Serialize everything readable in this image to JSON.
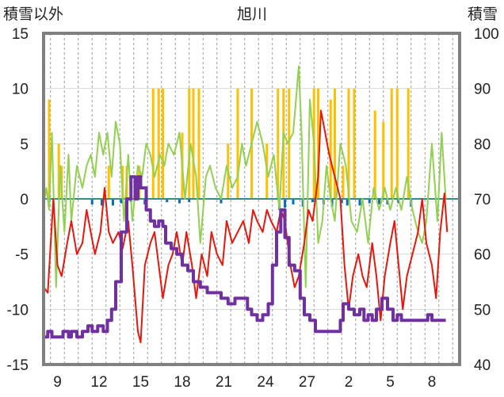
{
  "chart_data": {
    "type": "line",
    "title": "旭川",
    "y_left_label": "積雪以外",
    "y_right_label": "積雪",
    "y_left_range": [
      -15,
      15
    ],
    "y_left_ticks": [
      "15",
      "10",
      "5",
      "0",
      "-5",
      "-10",
      "-15"
    ],
    "y_right_range": [
      40,
      100
    ],
    "y_right_ticks": [
      "100",
      "90",
      "80",
      "70",
      "60",
      "50",
      "40"
    ],
    "x_range": [
      0,
      30
    ],
    "x_tick_positions": [
      1,
      4,
      7,
      10,
      13,
      16,
      19,
      22,
      25,
      28
    ],
    "x_tick_labels": [
      "9",
      "12",
      "15",
      "18",
      "21",
      "24",
      "27",
      "2",
      "5",
      "8"
    ],
    "grid": true,
    "colors": {
      "red": "#e8160c",
      "green": "#92d050",
      "orange": "#ffc000",
      "blue": "#0070c0",
      "purple": "#7030a0",
      "frame": "#808080"
    },
    "series": [
      {
        "color_key": "orange",
        "kind": "bars",
        "axis": "left",
        "points": [
          [
            0.4,
            9
          ],
          [
            1.1,
            5
          ],
          [
            1.3,
            3
          ],
          [
            4.7,
            3
          ],
          [
            5.7,
            3
          ],
          [
            6.0,
            3
          ],
          [
            6.9,
            3
          ],
          [
            7.9,
            10
          ],
          [
            8.3,
            10
          ],
          [
            8.6,
            10
          ],
          [
            10.0,
            6
          ],
          [
            10.5,
            10
          ],
          [
            10.8,
            10
          ],
          [
            11.2,
            10
          ],
          [
            13.3,
            5
          ],
          [
            14.0,
            10
          ],
          [
            15.0,
            10
          ],
          [
            16.1,
            5
          ],
          [
            16.9,
            10
          ],
          [
            17.3,
            10
          ],
          [
            17.7,
            10
          ],
          [
            19.5,
            10
          ],
          [
            19.8,
            10
          ],
          [
            20.7,
            9
          ],
          [
            21.0,
            10
          ],
          [
            21.6,
            3
          ],
          [
            22.0,
            10
          ],
          [
            22.4,
            10
          ],
          [
            23.9,
            8
          ],
          [
            24.5,
            7
          ],
          [
            25.1,
            10
          ],
          [
            25.5,
            10
          ],
          [
            26.3,
            10
          ]
        ]
      },
      {
        "color_key": "blue",
        "kind": "bars",
        "axis": "left",
        "points": [
          [
            3.5,
            -0.5
          ],
          [
            4.2,
            -0.6
          ],
          [
            5.0,
            -0.6
          ],
          [
            5.6,
            -0.4
          ],
          [
            6.3,
            -0.3
          ],
          [
            7.3,
            -0.5
          ],
          [
            8.9,
            -0.3
          ],
          [
            9.8,
            -0.4
          ],
          [
            10.5,
            -0.3
          ],
          [
            12.8,
            -0.4
          ],
          [
            17.0,
            -1.0
          ],
          [
            17.4,
            -0.8
          ],
          [
            18.0,
            -0.5
          ],
          [
            18.7,
            -0.7
          ],
          [
            19.4,
            -0.3
          ],
          [
            20.2,
            -0.5
          ],
          [
            20.8,
            -0.7
          ],
          [
            21.5,
            -0.4
          ],
          [
            21.9,
            -0.6
          ],
          [
            22.8,
            -0.6
          ],
          [
            23.5,
            -0.4
          ],
          [
            24.2,
            -0.5
          ],
          [
            24.8,
            -0.5
          ],
          [
            25.6,
            -0.4
          ],
          [
            26.5,
            -0.7
          ]
        ]
      },
      {
        "color_key": "green",
        "kind": "line",
        "axis": "left",
        "points": [
          [
            0,
            -0.5
          ],
          [
            0.2,
            1
          ],
          [
            0.4,
            -1
          ],
          [
            0.6,
            6
          ],
          [
            0.9,
            -8
          ],
          [
            1.2,
            3
          ],
          [
            1.5,
            -3
          ],
          [
            1.8,
            4
          ],
          [
            2.0,
            -2
          ],
          [
            2.4,
            3
          ],
          [
            2.8,
            1
          ],
          [
            3.1,
            3
          ],
          [
            3.4,
            4
          ],
          [
            3.7,
            2
          ],
          [
            4.0,
            6
          ],
          [
            4.3,
            4
          ],
          [
            4.6,
            6
          ],
          [
            4.9,
            2
          ],
          [
            5.2,
            7
          ],
          [
            5.5,
            5
          ],
          [
            5.8,
            -2
          ],
          [
            6.1,
            4
          ],
          [
            6.4,
            -2
          ],
          [
            6.8,
            3
          ],
          [
            7.1,
            2
          ],
          [
            7.4,
            5
          ],
          [
            7.7,
            4
          ],
          [
            8.0,
            2
          ],
          [
            8.4,
            4
          ],
          [
            8.7,
            3
          ],
          [
            9.0,
            5
          ],
          [
            9.4,
            4
          ],
          [
            9.8,
            6
          ],
          [
            10.2,
            0
          ],
          [
            10.6,
            5
          ],
          [
            11.0,
            2
          ],
          [
            11.3,
            -4
          ],
          [
            11.7,
            2
          ],
          [
            12.0,
            3
          ],
          [
            12.4,
            1
          ],
          [
            12.8,
            0
          ],
          [
            13.2,
            3
          ],
          [
            13.6,
            1
          ],
          [
            14.0,
            2
          ],
          [
            14.3,
            5
          ],
          [
            14.6,
            3
          ],
          [
            15.0,
            5
          ],
          [
            15.4,
            7
          ],
          [
            15.8,
            5
          ],
          [
            16.2,
            2
          ],
          [
            16.6,
            4
          ],
          [
            17.0,
            -1
          ],
          [
            17.3,
            6
          ],
          [
            17.6,
            5
          ],
          [
            18.0,
            6
          ],
          [
            18.4,
            12
          ],
          [
            18.6,
            6
          ],
          [
            18.9,
            -8
          ],
          [
            19.2,
            9
          ],
          [
            19.5,
            5
          ],
          [
            19.8,
            -4
          ],
          [
            20.1,
            -2
          ],
          [
            20.4,
            3
          ],
          [
            20.7,
            0
          ],
          [
            21.0,
            -2
          ],
          [
            21.4,
            5
          ],
          [
            21.8,
            3
          ],
          [
            22.2,
            -2
          ],
          [
            22.6,
            -3
          ],
          [
            23.0,
            0
          ],
          [
            23.4,
            -4
          ],
          [
            23.8,
            1
          ],
          [
            24.2,
            -1
          ],
          [
            24.6,
            1
          ],
          [
            25.0,
            -1
          ],
          [
            25.4,
            1
          ],
          [
            25.8,
            -1
          ],
          [
            26.2,
            2
          ],
          [
            26.6,
            -1
          ],
          [
            27.0,
            -3
          ],
          [
            27.3,
            -4
          ],
          [
            27.6,
            -2
          ],
          [
            28.0,
            5
          ],
          [
            28.4,
            -2
          ],
          [
            28.7,
            6
          ],
          [
            29.0,
            0
          ]
        ]
      },
      {
        "color_key": "red",
        "kind": "line",
        "axis": "left",
        "points": [
          [
            0,
            -8
          ],
          [
            0.3,
            -8.5
          ],
          [
            0.7,
            0
          ],
          [
            1.0,
            -6
          ],
          [
            1.3,
            -7
          ],
          [
            1.7,
            -4
          ],
          [
            2.0,
            -2
          ],
          [
            2.4,
            -5
          ],
          [
            2.8,
            -4
          ],
          [
            3.1,
            -1
          ],
          [
            3.4,
            -3
          ],
          [
            3.7,
            -5
          ],
          [
            4.1,
            -3
          ],
          [
            4.4,
            1
          ],
          [
            4.7,
            -3
          ],
          [
            5.0,
            -4
          ],
          [
            5.4,
            -3
          ],
          [
            5.7,
            -4.5
          ],
          [
            6.1,
            -2
          ],
          [
            6.4,
            -6
          ],
          [
            6.8,
            -12
          ],
          [
            7.0,
            -13
          ],
          [
            7.3,
            -6
          ],
          [
            7.7,
            -4
          ],
          [
            8.0,
            -3
          ],
          [
            8.3,
            -6
          ],
          [
            8.6,
            -9
          ],
          [
            9.0,
            -6
          ],
          [
            9.3,
            -5
          ],
          [
            9.6,
            -3
          ],
          [
            10.0,
            -6
          ],
          [
            10.3,
            -3
          ],
          [
            10.7,
            -6
          ],
          [
            11.0,
            -9
          ],
          [
            11.4,
            -5
          ],
          [
            11.8,
            -7
          ],
          [
            12.1,
            -3
          ],
          [
            12.5,
            -5
          ],
          [
            12.9,
            -6
          ],
          [
            13.2,
            -2
          ],
          [
            13.6,
            -4
          ],
          [
            14.0,
            -3
          ],
          [
            14.4,
            -2
          ],
          [
            14.8,
            -4
          ],
          [
            15.1,
            -1
          ],
          [
            15.4,
            -2
          ],
          [
            15.8,
            -3
          ],
          [
            16.1,
            -1
          ],
          [
            16.4,
            -2
          ],
          [
            16.8,
            -3
          ],
          [
            17.1,
            -1
          ],
          [
            17.4,
            -2
          ],
          [
            17.8,
            -6
          ],
          [
            18.1,
            -8
          ],
          [
            18.4,
            -7
          ],
          [
            18.8,
            -4
          ],
          [
            19.1,
            -1
          ],
          [
            19.4,
            -2
          ],
          [
            19.8,
            2
          ],
          [
            20.0,
            8
          ],
          [
            20.3,
            6
          ],
          [
            20.6,
            4
          ],
          [
            21.0,
            2
          ],
          [
            21.4,
            0
          ],
          [
            21.7,
            -6
          ],
          [
            22.0,
            -10
          ],
          [
            22.3,
            -7
          ],
          [
            22.7,
            -5
          ],
          [
            23.0,
            -7
          ],
          [
            23.3,
            -8
          ],
          [
            23.7,
            -4
          ],
          [
            24.0,
            -7
          ],
          [
            24.3,
            -11
          ],
          [
            24.6,
            -7
          ],
          [
            25.0,
            -4
          ],
          [
            25.3,
            -2
          ],
          [
            25.6,
            -6
          ],
          [
            25.9,
            -10
          ],
          [
            26.2,
            -7
          ],
          [
            26.6,
            -5
          ],
          [
            27.0,
            -3
          ],
          [
            27.3,
            0
          ],
          [
            27.6,
            -4
          ],
          [
            28.0,
            -6
          ],
          [
            28.3,
            -9
          ],
          [
            28.6,
            -3
          ],
          [
            28.9,
            0.5
          ],
          [
            29.1,
            -3
          ]
        ]
      },
      {
        "color_key": "purple",
        "kind": "step",
        "axis": "right",
        "points": [
          [
            0,
            45
          ],
          [
            0.3,
            46
          ],
          [
            0.6,
            45
          ],
          [
            1.2,
            45
          ],
          [
            1.4,
            46
          ],
          [
            1.8,
            45
          ],
          [
            2.0,
            46
          ],
          [
            2.4,
            45
          ],
          [
            2.8,
            46
          ],
          [
            3.2,
            47
          ],
          [
            3.5,
            46
          ],
          [
            3.9,
            47
          ],
          [
            4.3,
            46
          ],
          [
            4.6,
            48
          ],
          [
            4.9,
            50
          ],
          [
            5.2,
            55
          ],
          [
            5.6,
            64
          ],
          [
            6.0,
            70
          ],
          [
            6.3,
            74
          ],
          [
            6.6,
            70
          ],
          [
            6.8,
            74
          ],
          [
            7.0,
            72
          ],
          [
            7.4,
            68
          ],
          [
            7.7,
            66
          ],
          [
            8.0,
            65
          ],
          [
            8.3,
            66
          ],
          [
            8.6,
            65
          ],
          [
            8.8,
            62
          ],
          [
            9.2,
            61
          ],
          [
            9.6,
            60
          ],
          [
            10.0,
            58
          ],
          [
            10.4,
            57
          ],
          [
            10.8,
            55
          ],
          [
            11.3,
            54
          ],
          [
            11.8,
            53
          ],
          [
            12.3,
            53
          ],
          [
            12.8,
            52
          ],
          [
            13.3,
            51
          ],
          [
            13.8,
            52
          ],
          [
            14.3,
            52
          ],
          [
            14.7,
            50
          ],
          [
            15.0,
            49
          ],
          [
            15.4,
            48
          ],
          [
            15.8,
            49
          ],
          [
            16.2,
            51
          ],
          [
            16.5,
            58
          ],
          [
            16.8,
            64
          ],
          [
            17.1,
            68
          ],
          [
            17.4,
            63
          ],
          [
            17.7,
            58
          ],
          [
            18.1,
            57
          ],
          [
            18.5,
            52
          ],
          [
            18.8,
            49
          ],
          [
            19.2,
            48
          ],
          [
            19.6,
            46
          ],
          [
            20.0,
            46
          ],
          [
            20.5,
            46
          ],
          [
            21.0,
            46
          ],
          [
            21.4,
            48
          ],
          [
            21.6,
            51
          ],
          [
            22.0,
            50
          ],
          [
            22.4,
            49
          ],
          [
            22.8,
            50
          ],
          [
            23.1,
            48
          ],
          [
            23.4,
            49
          ],
          [
            23.7,
            48
          ],
          [
            24.0,
            50
          ],
          [
            24.4,
            52
          ],
          [
            24.8,
            50
          ],
          [
            25.2,
            48
          ],
          [
            25.5,
            49
          ],
          [
            25.8,
            48
          ],
          [
            26.1,
            48
          ],
          [
            26.5,
            48
          ],
          [
            27.0,
            48
          ],
          [
            27.4,
            48
          ],
          [
            27.7,
            49
          ],
          [
            28.0,
            48
          ],
          [
            28.4,
            48
          ],
          [
            29.0,
            48
          ]
        ]
      }
    ]
  }
}
